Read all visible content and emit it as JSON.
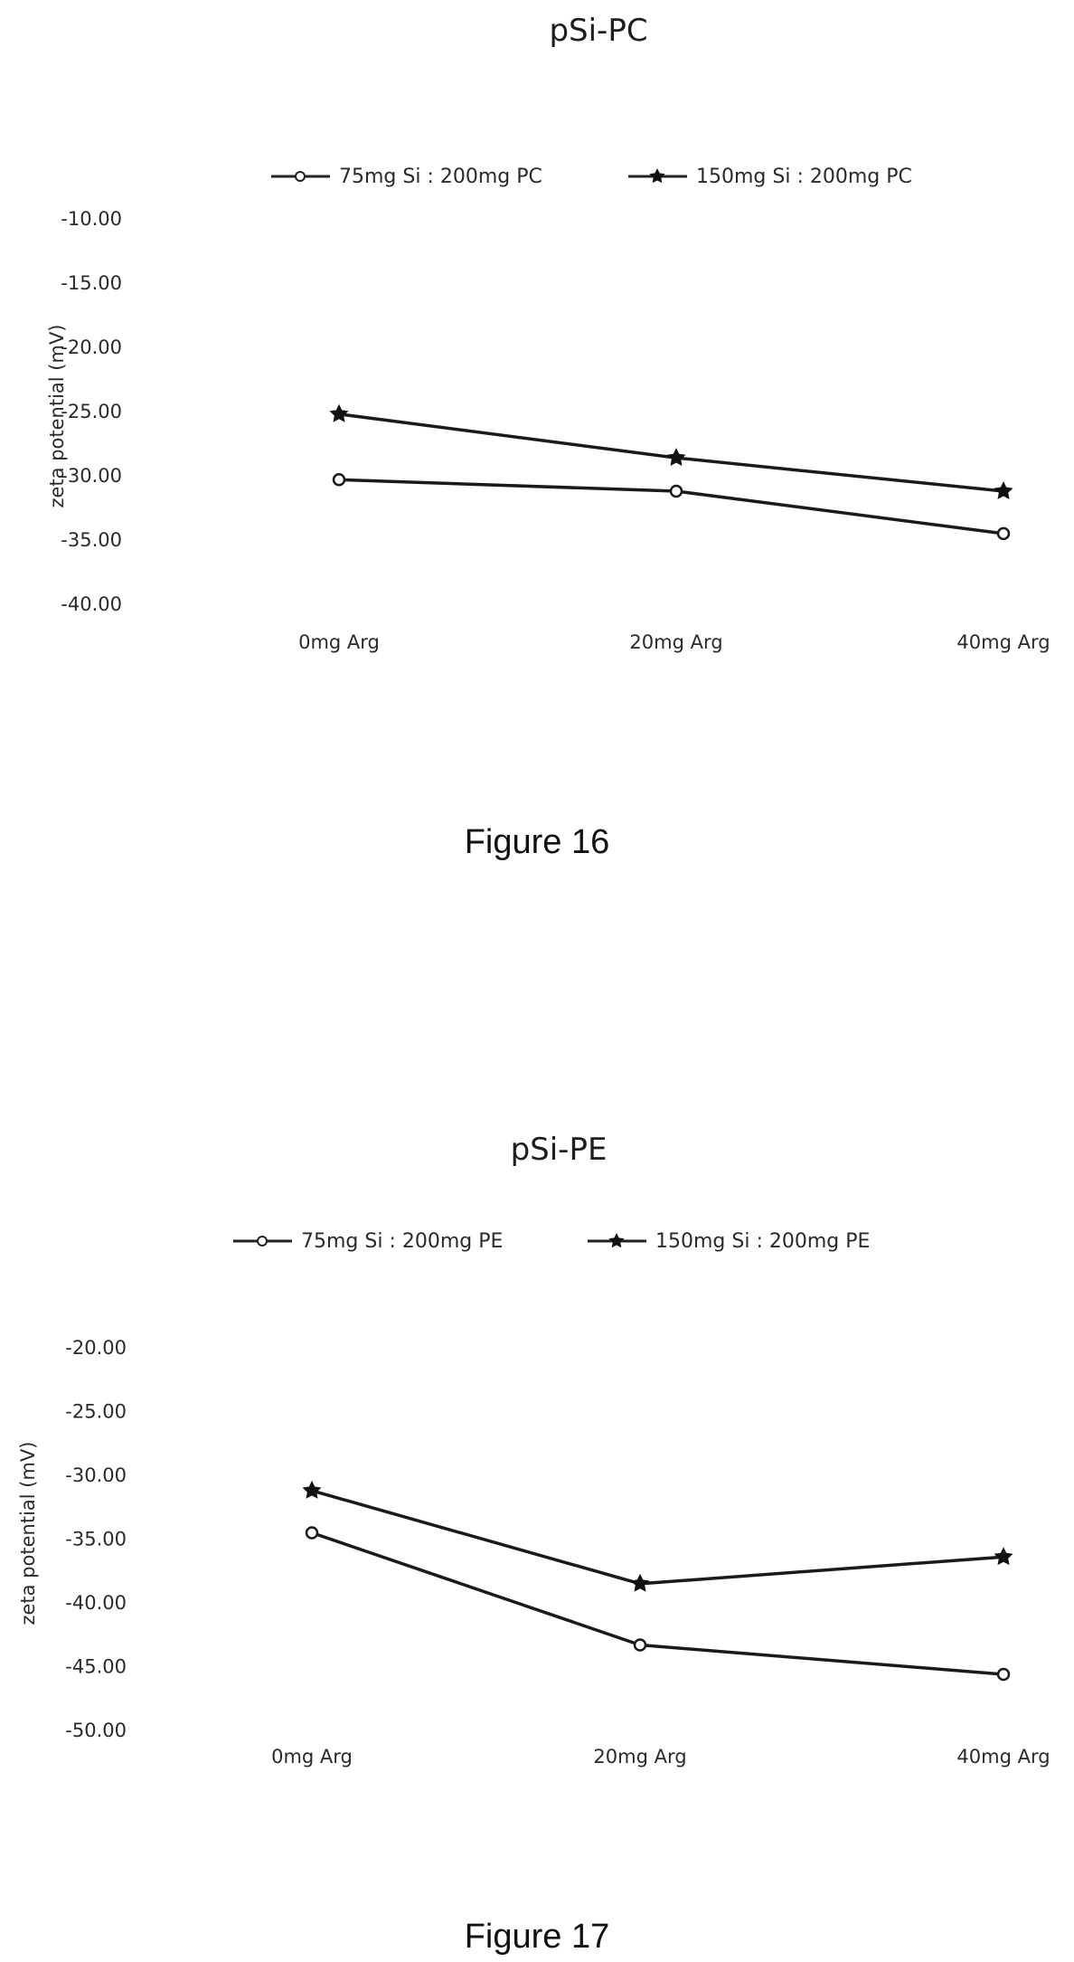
{
  "chart_data": [
    {
      "type": "line",
      "title": "pSi-PC",
      "ylabel": "zeta potential (mV)",
      "categories": [
        "0mg Arg",
        "20mg Arg",
        "40mg Arg"
      ],
      "y_ticks": [
        "-10.00",
        "-15.00",
        "-20.00",
        "-25.00",
        "-30.00",
        "-35.00",
        "-40.00"
      ],
      "ylim": [
        -40,
        -10
      ],
      "legend_position": "top",
      "series": [
        {
          "name": "75mg Si : 200mg PC",
          "marker": "open-circle",
          "values": [
            -30.3,
            -31.2,
            -34.5
          ]
        },
        {
          "name": "150mg Si : 200mg PC",
          "marker": "filled-star",
          "values": [
            -25.2,
            -28.6,
            -31.2
          ]
        }
      ]
    },
    {
      "type": "line",
      "title": "pSi-PE",
      "ylabel": "zeta potential (mV)",
      "categories": [
        "0mg Arg",
        "20mg Arg",
        "40mg Arg"
      ],
      "y_ticks": [
        "-20.00",
        "-25.00",
        "-30.00",
        "-35.00",
        "-40.00",
        "-45.00",
        "-50.00"
      ],
      "ylim": [
        -50,
        -20
      ],
      "legend_position": "top",
      "series": [
        {
          "name": "75mg Si : 200mg PE",
          "marker": "open-circle",
          "values": [
            -34.5,
            -43.3,
            -45.6
          ]
        },
        {
          "name": "150mg Si : 200mg PE",
          "marker": "filled-star",
          "values": [
            -31.2,
            -38.5,
            -36.4
          ]
        }
      ]
    }
  ],
  "captions": {
    "fig16": "Figure 16",
    "fig17": "Figure 17"
  }
}
